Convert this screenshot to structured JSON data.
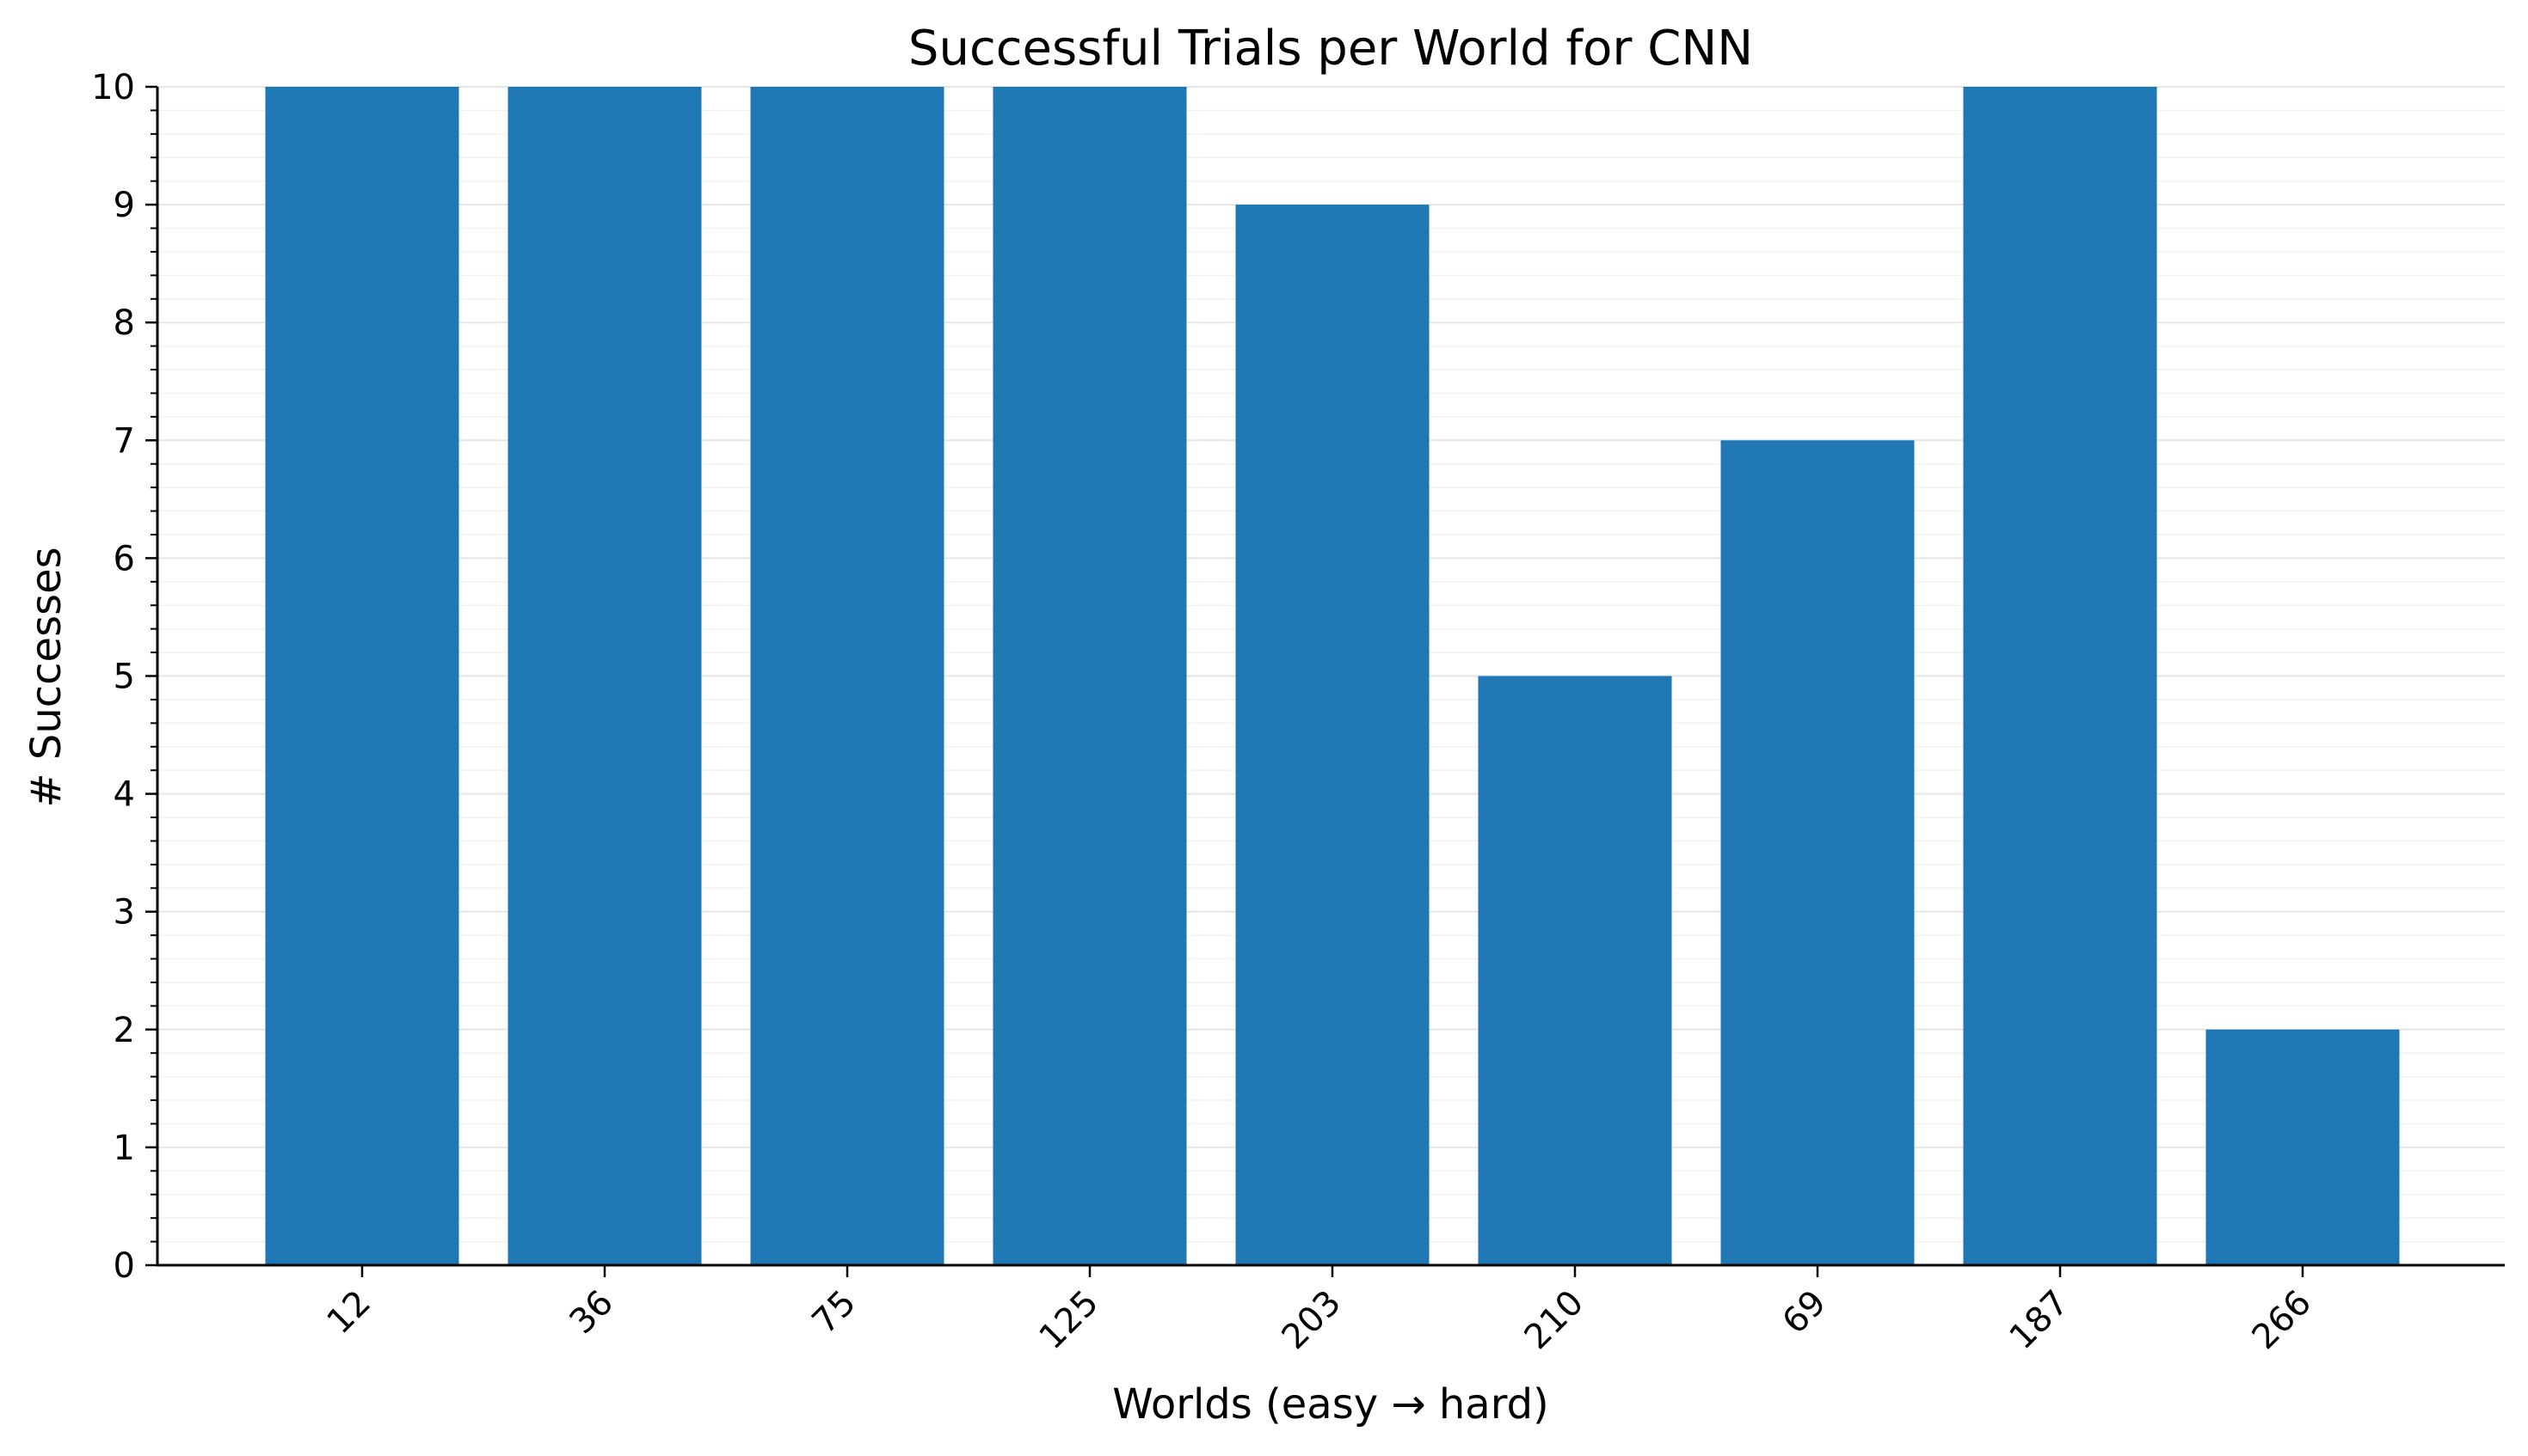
{
  "chart_data": {
    "type": "bar",
    "title": "Successful Trials per World for CNN",
    "xlabel": "Worlds (easy → hard)",
    "ylabel": "# Successes",
    "categories": [
      "12",
      "36",
      "75",
      "125",
      "203",
      "210",
      "69",
      "187",
      "266"
    ],
    "values": [
      10,
      10,
      10,
      10,
      9,
      5,
      7,
      10,
      2
    ],
    "ylim": [
      0,
      10
    ],
    "yticks": [
      "0",
      "1",
      "2",
      "3",
      "4",
      "5",
      "6",
      "7",
      "8",
      "9",
      "10"
    ],
    "grid": true,
    "minor_grid": true,
    "legend": "none",
    "bar_color": "#1f77b4",
    "grid_color": "#e6e6e6",
    "minor_grid_color": "#f2f2f2"
  }
}
